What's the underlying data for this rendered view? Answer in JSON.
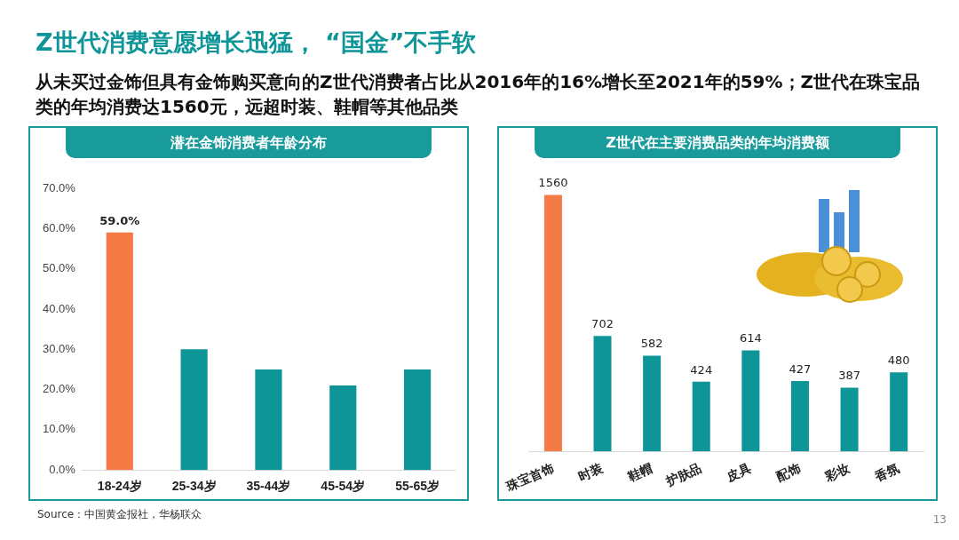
{
  "chart_data": [
    {
      "type": "other",
      "title": "Z世代消费意愿增长迅猛， “国金”不手软",
      "subtitle": "从未买过金饰但具有金饰购买意向的Z世代消费者占比从2016年的16%增长至2021年的59%；Z世代在珠宝品类的年均消费达1560元，远超时装、鞋帽等其他品类",
      "annotations": [
        "Source：中国黄金报社，华杨联众",
        "13"
      ]
    },
    {
      "type": "bar",
      "title": "潜在金饰消费者年龄分布",
      "categories": [
        "18-24岁",
        "25-34岁",
        "35-44岁",
        "45-54岁",
        "55-65岁"
      ],
      "values": [
        59.0,
        30,
        25,
        21,
        25
      ],
      "colors": [
        "#f47b45",
        "#0e9598",
        "#0e9598",
        "#0e9598",
        "#0e9598"
      ],
      "value_labels": [
        "59.0%",
        null,
        null,
        null,
        null
      ],
      "ylim": [
        0,
        70
      ],
      "yticks": [
        {
          "value": 0,
          "label": "0.0%"
        },
        {
          "value": 10,
          "label": "10.0%"
        },
        {
          "value": 20,
          "label": "20.0%"
        },
        {
          "value": 30,
          "label": "30.0%"
        },
        {
          "value": 40,
          "label": "40.0%"
        },
        {
          "value": 50,
          "label": "50.0%"
        },
        {
          "value": 60,
          "label": "60.0%"
        },
        {
          "value": 70,
          "label": "70.0%"
        }
      ],
      "grid": false,
      "legend": false
    },
    {
      "type": "bar",
      "title": "Z世代在主要消费品类的年均消费额",
      "categories": [
        "珠宝首饰",
        "时装",
        "鞋帽",
        "护肤品",
        "皮具",
        "配饰",
        "彩妆",
        "香氛"
      ],
      "values": [
        1560,
        702,
        582,
        424,
        614,
        427,
        387,
        480
      ],
      "colors": [
        "#f47b45",
        "#0e9598",
        "#0e9598",
        "#0e9598",
        "#0e9598",
        "#0e9598",
        "#0e9598",
        "#0e9598"
      ],
      "data_labels": true,
      "tick_labels": "x",
      "grid": false,
      "legend": false
    }
  ]
}
